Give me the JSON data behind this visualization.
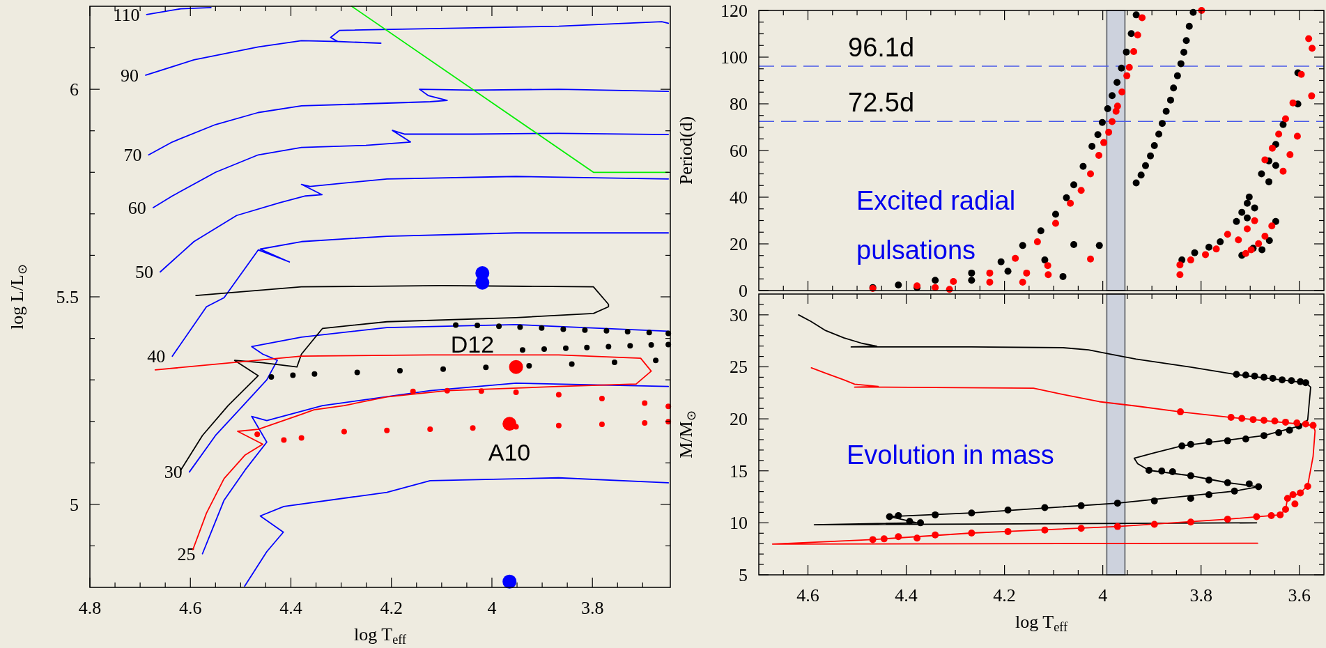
{
  "chart_data": [
    {
      "type": "line",
      "xlabel": "log T$_{eff}$",
      "ylabel": "log L/L$_{⊙}$",
      "xlim": [
        4.8,
        3.645
      ],
      "ylim": [
        4.8,
        6.2
      ],
      "xticks": [
        4.8,
        {
          "value": 4.75,
          "label": null
        },
        {
          "value": 4.7,
          "label": null
        },
        {
          "value": 4.65,
          "label": null
        },
        4.6,
        {
          "value": 4.55,
          "label": null
        },
        {
          "value": 4.5,
          "label": null
        },
        {
          "value": 4.45,
          "label": null
        },
        4.4,
        {
          "value": 4.35,
          "label": null
        },
        {
          "value": 4.3,
          "label": null
        },
        {
          "value": 4.25,
          "label": null
        },
        4.2,
        {
          "value": 4.15,
          "label": null
        },
        {
          "value": 4.1,
          "label": null
        },
        {
          "value": 4.05,
          "label": null
        },
        4,
        {
          "value": 3.95,
          "label": null
        },
        {
          "value": 3.9,
          "label": null
        },
        {
          "value": 3.85,
          "label": null
        },
        3.8,
        {
          "value": 3.75,
          "label": null
        },
        {
          "value": 3.7,
          "label": null
        }
      ],
      "yticks": [
        {
          "value": 4.9,
          "label": null
        },
        5,
        {
          "value": 5.1,
          "label": null
        },
        {
          "value": 5.2,
          "label": null
        },
        {
          "value": 5.3,
          "label": null
        },
        {
          "value": 5.4,
          "label": null
        },
        5.5,
        {
          "value": 5.6,
          "label": null
        },
        {
          "value": 5.7,
          "label": null
        },
        {
          "value": 5.8,
          "label": null
        },
        {
          "value": 5.9,
          "label": null
        },
        6,
        {
          "value": 6.1,
          "label": null
        }
      ],
      "series": [
        {
          "type": "line",
          "name": "110",
          "color": "#0000ff",
          "x": [
            4.687,
            4.619,
            4.559
          ],
          "values": [
            6.18,
            6.194,
            6.197
          ]
        },
        {
          "type": "line",
          "name": "90",
          "color": "#0000ff",
          "x": [
            4.689,
            4.593,
            4.465,
            4.379,
            4.303,
            4.221,
            4.307,
            4.321,
            4.303,
            4.123,
            3.867,
            3.662,
            3.649
          ],
          "values": [
            6.034,
            6.071,
            6.102,
            6.117,
            6.115,
            6.111,
            6.115,
            6.125,
            6.142,
            6.146,
            6.152,
            6.163,
            6.159
          ]
        },
        {
          "type": "line",
          "name": "70",
          "color": "#0000ff",
          "x": [
            4.683,
            4.636,
            4.55,
            4.465,
            4.379,
            4.251,
            4.123,
            4.089,
            4.127,
            4.144,
            4.038,
            3.867,
            3.649
          ],
          "values": [
            5.842,
            5.873,
            5.915,
            5.944,
            5.96,
            5.965,
            5.97,
            5.973,
            5.985,
            6.0,
            5.998,
            6.0,
            5.995
          ]
        },
        {
          "type": "line",
          "name": "60",
          "color": "#0000ff",
          "x": [
            4.674,
            4.636,
            4.55,
            4.465,
            4.379,
            4.251,
            4.162,
            4.198,
            4.174,
            4.038,
            3.867,
            3.649
          ],
          "values": [
            5.715,
            5.743,
            5.8,
            5.842,
            5.86,
            5.865,
            5.873,
            5.901,
            5.892,
            5.892,
            5.894,
            5.891
          ]
        },
        {
          "type": "line",
          "name": "50",
          "color": "#0000ff",
          "x": [
            4.66,
            4.593,
            4.508,
            4.422,
            4.371,
            4.338,
            4.379,
            4.362,
            4.209,
            3.952,
            3.649
          ],
          "values": [
            5.56,
            5.633,
            5.696,
            5.727,
            5.743,
            5.746,
            5.771,
            5.766,
            5.784,
            5.79,
            5.784
          ]
        },
        {
          "type": "line",
          "name": "40",
          "color": "#0000ff",
          "x": [
            4.636,
            4.568,
            4.533,
            4.465,
            4.403,
            4.461,
            4.379,
            4.209,
            3.952,
            3.649
          ],
          "values": [
            5.357,
            5.476,
            5.498,
            5.613,
            5.584,
            5.615,
            5.633,
            5.646,
            5.654,
            5.654
          ]
        },
        {
          "type": "line",
          "name": "30",
          "color": "#0000ff",
          "x": [
            4.602,
            4.55,
            4.499,
            4.448,
            4.427,
            4.456,
            4.478,
            4.379,
            4.209,
            3.952,
            3.649
          ],
          "values": [
            5.078,
            5.166,
            5.233,
            5.3,
            5.347,
            5.362,
            5.38,
            5.403,
            5.426,
            5.433,
            5.417
          ]
        },
        {
          "type": "line",
          "name": "25",
          "color": "#0000ff",
          "x": [
            4.576,
            4.533,
            4.491,
            4.448,
            4.478,
            4.448,
            4.337,
            4.123,
            3.952,
            3.649
          ],
          "values": [
            4.881,
            5.01,
            5.083,
            5.15,
            5.212,
            5.202,
            5.238,
            5.274,
            5.292,
            5.284
          ]
        },
        {
          "type": "line",
          "color": "#0000ff",
          "x": [
            4.492,
            4.448,
            4.415,
            4.461,
            4.414,
            4.209,
            4.123,
            3.867,
            3.649
          ],
          "values": [
            4.803,
            4.886,
            4.933,
            4.972,
            4.995,
            5.029,
            5.057,
            5.064,
            5.052
          ]
        },
        {
          "type": "line",
          "color": "#00ee00",
          "x": [
            4.279,
            3.798,
            3.649
          ],
          "values": [
            6.2,
            5.8,
            5.8
          ]
        },
        {
          "type": "line",
          "color": "#000000",
          "x": [
            4.619,
            4.576,
            4.525,
            4.465,
            4.512,
            4.456,
            4.388,
            4.379,
            4.337,
            4.209,
            3.952,
            3.798,
            3.768,
            3.768,
            3.798,
            4.1,
            4.379,
            4.589
          ],
          "values": [
            5.083,
            5.166,
            5.238,
            5.31,
            5.347,
            5.341,
            5.331,
            5.362,
            5.424,
            5.44,
            5.45,
            5.46,
            5.476,
            5.482,
            5.524,
            5.527,
            5.524,
            5.503
          ]
        },
        {
          "type": "line",
          "color": "#ff0000",
          "x": [
            4.595,
            4.568,
            4.533,
            4.491,
            4.456,
            4.506,
            4.465,
            4.379,
            4.354,
            4.294,
            4.209,
            4.089,
            3.867,
            3.713,
            3.683,
            3.704,
            3.867,
            4.123,
            4.379,
            4.67
          ],
          "values": [
            4.891,
            4.979,
            5.062,
            5.119,
            5.145,
            5.176,
            5.181,
            5.217,
            5.228,
            5.238,
            5.259,
            5.274,
            5.284,
            5.29,
            5.321,
            5.352,
            5.36,
            5.36,
            5.357,
            5.324
          ]
        },
        {
          "type": "scatter",
          "marker": "circle",
          "color": "#000000",
          "x": [
            4.072,
            4.029,
            3.986,
            3.944,
            3.901,
            3.858,
            3.815,
            3.772,
            3.73,
            3.687,
            3.649,
            3.939,
            3.896,
            3.853,
            3.811,
            3.768,
            3.725,
            3.683,
            3.649,
            4.439,
            4.396,
            4.353,
            4.268,
            4.183,
            4.097,
            4.012,
            3.926,
            3.841,
            3.756,
            3.674
          ],
          "values": [
            5.432,
            5.431,
            5.429,
            5.427,
            5.425,
            5.422,
            5.42,
            5.418,
            5.416,
            5.414,
            5.412,
            5.372,
            5.374,
            5.376,
            5.378,
            5.38,
            5.382,
            5.384,
            5.385,
            5.307,
            5.311,
            5.314,
            5.318,
            5.322,
            5.326,
            5.33,
            5.334,
            5.338,
            5.342,
            5.347
          ]
        },
        {
          "type": "scatter",
          "marker": "circle",
          "color": "#ff0000",
          "x": [
            4.157,
            4.089,
            4.021,
            3.952,
            3.867,
            3.781,
            3.696,
            3.649,
            4.467,
            4.414,
            4.379,
            4.294,
            4.209,
            4.123,
            4.038,
            3.952,
            3.867,
            3.781,
            3.696,
            3.649
          ],
          "values": [
            5.272,
            5.274,
            5.273,
            5.27,
            5.264,
            5.255,
            5.244,
            5.236,
            5.169,
            5.155,
            5.16,
            5.175,
            5.178,
            5.181,
            5.184,
            5.187,
            5.19,
            5.193,
            5.196,
            5.199
          ]
        },
        {
          "type": "scatter",
          "marker": "circle",
          "color": "#0000ff",
          "x": [
            4.019,
            4.019,
            3.965
          ],
          "values": [
            5.557,
            5.534,
            4.814
          ]
        },
        {
          "type": "scatter",
          "marker": "circle",
          "color": "#ff0000",
          "x": [
            3.952,
            3.965
          ],
          "values": [
            5.331,
            5.194
          ]
        }
      ],
      "annotations": [
        "D12",
        "A10"
      ]
    },
    {
      "type": "line",
      "ylabel": "Period(d)",
      "xlim": [
        4.7,
        3.55
      ],
      "ylim": [
        0,
        120
      ],
      "tick_labels": "y",
      "xticks": [
        {
          "value": 4.65,
          "label": null
        },
        4.6,
        {
          "value": 4.55,
          "label": null
        },
        {
          "value": 4.5,
          "label": null
        },
        {
          "value": 4.45,
          "label": null
        },
        4.4,
        {
          "value": 4.35,
          "label": null
        },
        {
          "value": 4.3,
          "label": null
        },
        {
          "value": 4.25,
          "label": null
        },
        4.2,
        {
          "value": 4.15,
          "label": null
        },
        {
          "value": 4.1,
          "label": null
        },
        {
          "value": 4.05,
          "label": null
        },
        4,
        {
          "value": 3.95,
          "label": null
        },
        {
          "value": 3.9,
          "label": null
        },
        {
          "value": 3.85,
          "label": null
        },
        3.8,
        {
          "value": 3.75,
          "label": null
        },
        {
          "value": 3.7,
          "label": null
        },
        {
          "value": 3.65,
          "label": null
        },
        3.6
      ],
      "yticks": [
        0,
        {
          "value": 5,
          "label": null
        },
        {
          "value": 10,
          "label": null
        },
        {
          "value": 15,
          "label": null
        },
        20,
        {
          "value": 25,
          "label": null
        },
        {
          "value": 30,
          "label": null
        },
        {
          "value": 35,
          "label": null
        },
        40,
        {
          "value": 45,
          "label": null
        },
        {
          "value": 50,
          "label": null
        },
        {
          "value": 55,
          "label": null
        },
        60,
        {
          "value": 65,
          "label": null
        },
        {
          "value": 70,
          "label": null
        },
        {
          "value": 75,
          "label": null
        },
        80,
        {
          "value": 85,
          "label": null
        },
        {
          "value": 90,
          "label": null
        },
        {
          "value": 95,
          "label": null
        },
        100,
        {
          "value": 105,
          "label": null
        },
        {
          "value": 110,
          "label": null
        },
        {
          "value": 115,
          "label": null
        },
        120
      ],
      "bands": [
        {
          "axis": "x",
          "from": 3.992,
          "to": 3.955,
          "color": "#cdd2dd"
        }
      ],
      "ref_lines": [
        {
          "axis": "y",
          "value": 96.1,
          "label": "96.1d",
          "color": "#4a5ae8",
          "line_style": "dashed"
        },
        {
          "axis": "y",
          "value": 72.5,
          "label": "72.5d",
          "color": "#4a5ae8",
          "line_style": "dashed"
        }
      ],
      "series": [
        {
          "type": "scatter",
          "marker": "circle",
          "color": "#000000",
          "x": [
            4.468,
            4.416,
            4.341,
            4.267,
            4.207,
            4.163,
            4.126,
            4.096,
            4.074,
            4.059,
            4.04,
            4.022,
            4.01,
            4.001,
            3.99,
            3.981,
            3.971,
            3.962,
            3.952,
            3.942,
            3.932,
            4.378,
            4.267,
            4.193,
            4.118,
            4.059,
            4.081,
            4.007,
            3.932,
            3.922,
            3.913,
            3.903,
            3.895,
            3.886,
            3.879,
            3.871,
            3.862,
            3.856,
            3.848,
            3.841,
            3.835,
            3.83,
            3.824,
            3.816,
            3.839,
            3.813,
            3.784,
            3.761,
            3.728,
            3.717,
            3.706,
            3.702,
            3.691,
            3.706,
            3.717,
            3.694,
            3.676,
            3.661,
            3.648,
            3.677,
            3.662,
            3.648,
            3.662,
            3.648,
            3.633,
            3.603,
            3.603
          ],
          "values": [
            1.3,
            2.4,
            4.4,
            7.5,
            12.3,
            19.3,
            25.6,
            32.7,
            39.8,
            45.3,
            53.2,
            61.8,
            66.8,
            72.0,
            77.9,
            83.5,
            89.2,
            95.3,
            102.2,
            110.1,
            118.1,
            1.3,
            4.4,
            8.3,
            13.1,
            19.7,
            6.0,
            19.3,
            46.1,
            49.5,
            53.5,
            57.7,
            62.1,
            67.0,
            71.6,
            76.8,
            81.6,
            86.8,
            92.0,
            97.2,
            102.1,
            107.1,
            113.2,
            119.2,
            13.1,
            16.2,
            18.6,
            20.9,
            29.6,
            33.5,
            37.4,
            40.1,
            35.4,
            31.1,
            15.1,
            18.1,
            17.5,
            21.4,
            29.6,
            50.0,
            46.6,
            53.6,
            55.5,
            62.6,
            71.1,
            79.9,
            93.3
          ]
        },
        {
          "type": "scatter",
          "marker": "circle",
          "color": "#ff0000",
          "x": [
            4.468,
            4.378,
            4.304,
            4.23,
            4.178,
            4.133,
            4.096,
            4.066,
            4.044,
            4.025,
            4.008,
            3.998,
            3.988,
            3.981,
            3.973,
            3.97,
            3.961,
            3.951,
            3.946,
            3.937,
            3.929,
            3.92,
            4.341,
            4.23,
            4.155,
            4.112,
            4.111,
            4.025,
            4.312,
            4.163,
            3.799,
            3.843,
            3.843,
            3.821,
            3.791,
            3.769,
            3.746,
            3.724,
            3.706,
            3.691,
            3.709,
            3.698,
            3.683,
            3.67,
            3.656,
            3.67,
            3.655,
            3.642,
            3.628,
            3.613,
            3.596,
            3.619,
            3.633,
            3.604,
            3.575,
            3.581,
            3.574
          ],
          "values": [
            0.9,
            2.0,
            3.9,
            7.5,
            13.8,
            20.9,
            28.8,
            37.4,
            42.9,
            50.0,
            57.9,
            63.4,
            67.8,
            72.4,
            76.8,
            79.0,
            85.1,
            92.0,
            95.6,
            102.4,
            109.5,
            116.9,
            1.3,
            3.6,
            7.5,
            10.7,
            6.8,
            13.5,
            0.5,
            3.6,
            120.0,
            6.8,
            11.0,
            13.1,
            15.4,
            17.8,
            24.1,
            21.7,
            26.4,
            29.9,
            15.9,
            17.5,
            20.1,
            23.3,
            27.7,
            56.0,
            61.0,
            67.0,
            73.6,
            80.4,
            92.6,
            58.2,
            51.1,
            66.1,
            83.4,
            107.9,
            103.8
          ]
        }
      ],
      "annotations": [
        "Excited radial pulsations"
      ]
    },
    {
      "type": "line",
      "xlabel": "log T$_{eff}$",
      "ylabel": "M/M$_{⊙}$",
      "xlim": [
        4.7,
        3.55
      ],
      "ylim": [
        5,
        32
      ],
      "xticks": [
        {
          "value": 4.65,
          "label": null
        },
        4.6,
        {
          "value": 4.55,
          "label": null
        },
        {
          "value": 4.5,
          "label": null
        },
        {
          "value": 4.45,
          "label": null
        },
        4.4,
        {
          "value": 4.35,
          "label": null
        },
        {
          "value": 4.3,
          "label": null
        },
        {
          "value": 4.25,
          "label": null
        },
        4.2,
        {
          "value": 4.15,
          "label": null
        },
        {
          "value": 4.1,
          "label": null
        },
        {
          "value": 4.05,
          "label": null
        },
        4,
        {
          "value": 3.95,
          "label": null
        },
        {
          "value": 3.9,
          "label": null
        },
        {
          "value": 3.85,
          "label": null
        },
        3.8,
        {
          "value": 3.75,
          "label": null
        },
        {
          "value": 3.7,
          "label": null
        },
        {
          "value": 3.65,
          "label": null
        },
        3.6
      ],
      "yticks": [
        5,
        {
          "value": 6,
          "label": null
        },
        {
          "value": 7,
          "label": null
        },
        {
          "value": 8,
          "label": null
        },
        {
          "value": 9,
          "label": null
        },
        10,
        {
          "value": 11,
          "label": null
        },
        {
          "value": 12,
          "label": null
        },
        {
          "value": 13,
          "label": null
        },
        {
          "value": 14,
          "label": null
        },
        15,
        {
          "value": 16,
          "label": null
        },
        {
          "value": 17,
          "label": null
        },
        {
          "value": 18,
          "label": null
        },
        {
          "value": 19,
          "label": null
        },
        20,
        {
          "value": 21,
          "label": null
        },
        {
          "value": 22,
          "label": null
        },
        {
          "value": 23,
          "label": null
        },
        {
          "value": 24,
          "label": null
        },
        25,
        {
          "value": 26,
          "label": null
        },
        {
          "value": 27,
          "label": null
        },
        {
          "value": 28,
          "label": null
        },
        {
          "value": 29,
          "label": null
        },
        30,
        {
          "value": 31,
          "label": null
        }
      ],
      "bands": [
        {
          "axis": "x",
          "from": 3.992,
          "to": 3.955,
          "color": "#cdd2dd"
        }
      ],
      "series": [
        {
          "type": "line",
          "color": "#000000",
          "x": [
            4.619,
            4.594,
            4.564,
            4.527,
            4.49,
            4.46,
            4.512,
            4.46,
            4.267,
            4.081,
            4.029,
            3.984,
            3.932,
            3.821,
            3.732,
            3.587,
            3.577,
            3.583,
            3.601,
            3.672,
            3.839,
            3.895,
            3.936,
            3.929,
            3.906,
            3.821,
            3.746,
            3.683,
            3.732,
            3.97,
            4.267,
            4.434,
            4.378,
            4.587,
            3.687
          ],
          "values": [
            30,
            29.37,
            28.49,
            27.79,
            27.26,
            26.98,
            26.91,
            26.91,
            26.91,
            26.84,
            26.63,
            26.21,
            25.75,
            24.98,
            24.28,
            23.47,
            23.05,
            19.89,
            19.3,
            18.39,
            17.4,
            16.74,
            16.21,
            15.68,
            15.05,
            14.53,
            13.86,
            13.47,
            13.05,
            11.89,
            10.95,
            10.6,
            10.0,
            9.82,
            10.0
          ]
        },
        {
          "type": "line",
          "color": "#ff0000",
          "x": [
            4.593,
            4.564,
            4.527,
            4.505,
            4.457,
            4.505,
            4.453,
            4.141,
            4.081,
            4.007,
            3.932,
            3.842,
            3.739,
            3.572,
            3.568,
            3.572,
            3.583,
            3.598,
            3.624,
            3.628,
            3.639,
            3.746,
            3.97,
            4.267,
            4.468,
            4.672,
            3.685
          ],
          "values": [
            24.91,
            24.39,
            23.75,
            23.33,
            23.12,
            23.05,
            23.05,
            22.95,
            22.35,
            21.65,
            21.23,
            20.67,
            20.14,
            19.37,
            18.84,
            16.39,
            13.58,
            12.88,
            12.35,
            11.3,
            10.77,
            10.35,
            9.65,
            9.02,
            8.39,
            7.96,
            8.04
          ]
        },
        {
          "type": "scatter",
          "marker": "circle",
          "color": "#000000",
          "x": [
            3.728,
            3.709,
            3.691,
            3.672,
            3.654,
            3.635,
            3.616,
            3.598,
            3.587,
            3.601,
            3.62,
            3.642,
            3.672,
            3.709,
            3.746,
            3.784,
            3.821,
            3.839,
            3.906,
            3.88,
            3.858,
            3.821,
            3.784,
            3.746,
            3.702,
            3.683,
            3.732,
            3.784,
            3.821,
            3.895,
            3.97,
            4.044,
            4.118,
            4.193,
            4.267,
            4.341,
            4.416,
            4.434,
            4.393,
            4.371
          ],
          "values": [
            24.28,
            24.21,
            24.11,
            24.0,
            23.89,
            23.75,
            23.68,
            23.58,
            23.47,
            19.3,
            18.91,
            18.67,
            18.39,
            18.07,
            17.89,
            17.79,
            17.54,
            17.4,
            15.05,
            14.98,
            14.91,
            14.53,
            14.11,
            13.86,
            13.75,
            13.47,
            13.05,
            12.7,
            12.35,
            12.11,
            11.89,
            11.65,
            11.47,
            11.23,
            10.95,
            10.77,
            10.7,
            10.6,
            10.14,
            10.0
          ]
        },
        {
          "type": "scatter",
          "marker": "circle",
          "color": "#ff0000",
          "x": [
            3.842,
            3.739,
            3.717,
            3.694,
            3.672,
            3.65,
            3.628,
            3.605,
            3.587,
            3.572,
            3.583,
            3.598,
            3.613,
            3.624,
            3.609,
            3.628,
            3.639,
            3.657,
            3.687,
            3.746,
            3.821,
            3.895,
            3.97,
            4.044,
            4.118,
            4.193,
            4.267,
            4.341,
            4.416,
            4.468,
            4.445,
            4.378
          ],
          "values": [
            20.67,
            20.14,
            20.04,
            19.93,
            19.86,
            19.79,
            19.68,
            19.61,
            19.51,
            19.37,
            13.51,
            12.88,
            12.7,
            12.35,
            11.82,
            11.3,
            10.77,
            10.7,
            10.6,
            10.35,
            10.07,
            9.86,
            9.65,
            9.47,
            9.3,
            9.16,
            9.02,
            8.84,
            8.67,
            8.39,
            8.46,
            8.53
          ]
        }
      ],
      "annotations": [
        "Evolution in mass"
      ]
    }
  ]
}
